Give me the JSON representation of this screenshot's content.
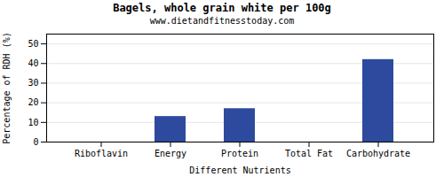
{
  "chart_data": {
    "type": "bar",
    "title": "Bagels, whole grain white per 100g",
    "subtitle": "www.dietandfitnesstoday.com",
    "xlabel": "Different Nutrients",
    "ylabel": "Percentage of RDH (%)",
    "categories": [
      "Riboflavin",
      "Energy",
      "Protein",
      "Total Fat",
      "Carbohydrate"
    ],
    "values": [
      0,
      13,
      17,
      0,
      42
    ],
    "color": "#2e4a9e",
    "ylim": [
      0,
      55
    ],
    "yticks": [
      0,
      10,
      20,
      30,
      40,
      50
    ],
    "grid": true
  }
}
